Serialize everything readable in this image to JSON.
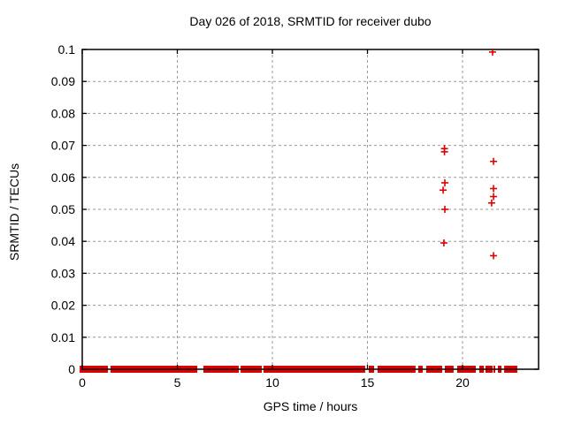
{
  "chart_data": {
    "type": "scatter",
    "title": "Day 026 of 2018, SRMTID for receiver dubo",
    "xlabel": "GPS time / hours",
    "ylabel": "SRMTID / TECUs",
    "xlim": [
      0,
      24
    ],
    "ylim": [
      0,
      0.1
    ],
    "xticks": [
      0,
      5,
      10,
      15,
      20
    ],
    "xtick_labels": [
      "0",
      "5",
      "10",
      "15",
      "20"
    ],
    "yticks": [
      0,
      0.01,
      0.02,
      0.03,
      0.04,
      0.05,
      0.06,
      0.07,
      0.08,
      0.09,
      0.1
    ],
    "ytick_labels": [
      "0",
      "0.01",
      "0.02",
      "0.03",
      "0.04",
      "0.05",
      "0.06",
      "0.07",
      "0.08",
      "0.09",
      "0.1"
    ],
    "grid": true,
    "legend": "none",
    "marker": "plus",
    "marker_color": "#e00000",
    "grid_color": "#9a9a9a",
    "axis_color": "#000000",
    "points": [
      [
        19.05,
        0.069
      ],
      [
        19.05,
        0.068
      ],
      [
        19.07,
        0.0583
      ],
      [
        18.98,
        0.056
      ],
      [
        19.07,
        0.05
      ],
      [
        19.02,
        0.0395
      ],
      [
        21.58,
        0.0992
      ],
      [
        21.63,
        0.065
      ],
      [
        21.63,
        0.0565
      ],
      [
        21.63,
        0.054
      ],
      [
        21.53,
        0.052
      ],
      [
        21.63,
        0.0355
      ]
    ],
    "zero_band_segments": [
      [
        0.0,
        1.35
      ],
      [
        1.49,
        6.05
      ],
      [
        6.37,
        8.23
      ],
      [
        8.33,
        9.44
      ],
      [
        9.53,
        14.88
      ],
      [
        15.07,
        15.35
      ],
      [
        15.53,
        17.53
      ],
      [
        17.67,
        17.91
      ],
      [
        18.09,
        18.93
      ],
      [
        19.07,
        19.53
      ],
      [
        19.72,
        20.7
      ],
      [
        20.88,
        21.12
      ],
      [
        21.21,
        21.58
      ],
      [
        21.63,
        21.72
      ],
      [
        21.86,
        22.05
      ],
      [
        22.19,
        22.88
      ]
    ]
  }
}
